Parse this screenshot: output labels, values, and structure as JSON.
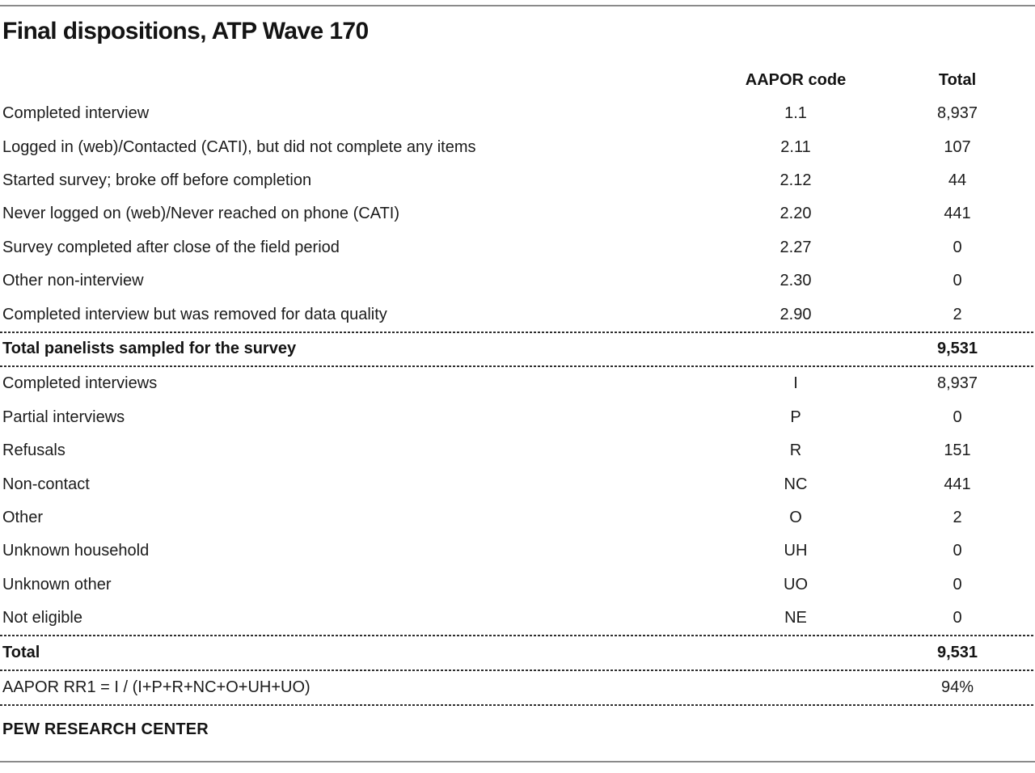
{
  "page": {
    "title": "Final dispositions, ATP Wave 170",
    "footer": "PEW RESEARCH CENTER"
  },
  "colors": {
    "text": "#1B1B1B",
    "solid_rule_gray": "#8A8A8A",
    "dashed_rule": "#2E2E2E",
    "background": "#FFFFFF"
  },
  "table": {
    "headers": {
      "label": "",
      "code": "AAPOR code",
      "total": "Total"
    },
    "rows": [
      {
        "label": "Completed interview",
        "code": "1.1",
        "total": "8,937",
        "bold": false
      },
      {
        "label": "Logged in (web)/Contacted (CATI), but did not complete any items",
        "code": "2.11",
        "total": "107",
        "bold": false
      },
      {
        "label": "Started survey; broke off before completion",
        "code": "2.12",
        "total": "44",
        "bold": false
      },
      {
        "label": "Never logged on (web)/Never reached on phone (CATI)",
        "code": "2.20",
        "total": "441",
        "bold": false
      },
      {
        "label": "Survey completed after close of the field period",
        "code": "2.27",
        "total": "0",
        "bold": false
      },
      {
        "label": "Other non-interview",
        "code": "2.30",
        "total": "0",
        "bold": false
      },
      {
        "label": "Completed interview but was removed for data quality",
        "code": "2.90",
        "total": "2",
        "bold": false
      },
      {
        "label": "Total panelists sampled for the survey",
        "code": "",
        "total": "9,531",
        "bold": true
      },
      {
        "label": "Completed interviews",
        "code": "I",
        "total": "8,937",
        "bold": false
      },
      {
        "label": "Partial interviews",
        "code": "P",
        "total": "0",
        "bold": false
      },
      {
        "label": "Refusals",
        "code": "R",
        "total": "151",
        "bold": false
      },
      {
        "label": "Non-contact",
        "code": "NC",
        "total": "441",
        "bold": false
      },
      {
        "label": "Other",
        "code": "O",
        "total": "2",
        "bold": false
      },
      {
        "label": "Unknown household",
        "code": "UH",
        "total": "0",
        "bold": false
      },
      {
        "label": "Unknown other",
        "code": "UO",
        "total": "0",
        "bold": false
      },
      {
        "label": "Not eligible",
        "code": "NE",
        "total": "0",
        "bold": false
      },
      {
        "label": "Total",
        "code": "",
        "total": "9,531",
        "bold": true
      },
      {
        "label": "AAPOR RR1 = I / (I+P+R+NC+O+UH+UO)",
        "code": "",
        "total": "94%",
        "bold": false
      }
    ]
  }
}
